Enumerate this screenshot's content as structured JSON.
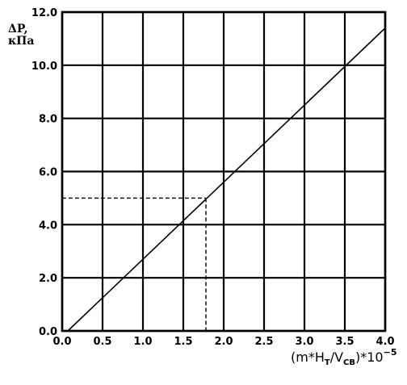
{
  "chart_data": {
    "type": "line",
    "title": "",
    "ylabel_line1": "ΔP,",
    "ylabel_line2": "кПа",
    "xlabel": {
      "prefix": "(m*H",
      "sub1": "T",
      "mid": "/V",
      "sub2": "CB",
      "suffix": ")*10",
      "sup": "−5"
    },
    "xlim": [
      0.0,
      4.0
    ],
    "ylim": [
      0.0,
      12.0
    ],
    "x_ticks": [
      0.0,
      0.5,
      1.0,
      1.5,
      2.0,
      2.5,
      3.0,
      3.5,
      4.0
    ],
    "x_tick_labels": [
      "0.0",
      "0.5",
      "1.0",
      "1.5",
      "2.0",
      "2.5",
      "3.0",
      "3.5",
      "4.0"
    ],
    "y_ticks": [
      0.0,
      2.0,
      4.0,
      6.0,
      8.0,
      10.0,
      12.0
    ],
    "y_tick_labels": [
      "0.0",
      "2.0",
      "4.0",
      "6.0",
      "8.0",
      "10.0",
      "12.0"
    ],
    "grid": true,
    "series": [
      {
        "x": [
          0.07,
          4.0
        ],
        "y": [
          0.0,
          11.4
        ]
      }
    ],
    "reference_point": {
      "x": 1.78,
      "y": 5.0,
      "style": "dashed"
    }
  }
}
